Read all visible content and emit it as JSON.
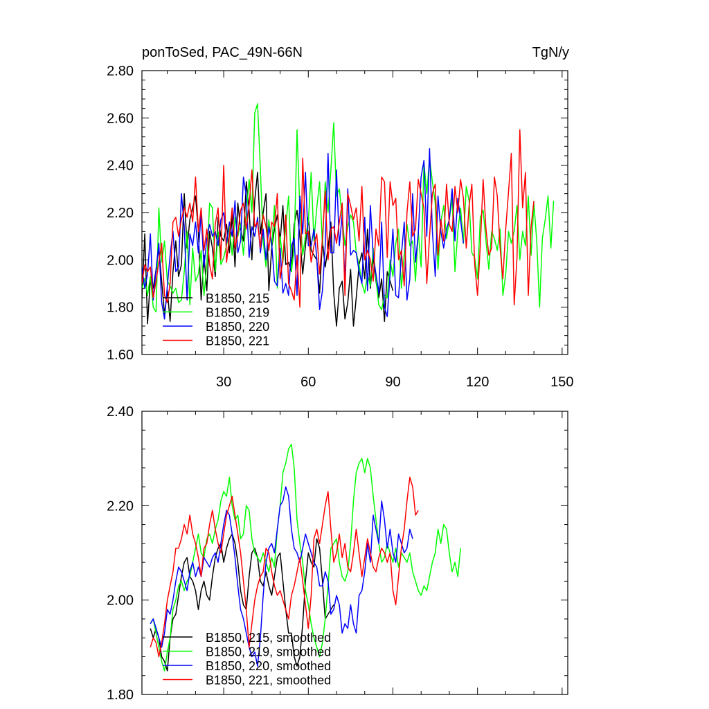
{
  "chart_data": [
    {
      "type": "line",
      "title_left": "ponToSed, PAC_49N-66N",
      "title_right": "TgN/y",
      "xlim": [
        1,
        152
      ],
      "ylim": [
        1.6,
        2.8
      ],
      "yticks": [
        1.6,
        1.8,
        2.0,
        2.2,
        2.4,
        2.6,
        2.8
      ],
      "ytick_labels": [
        "1.60",
        "1.80",
        "2.00",
        "2.20",
        "2.40",
        "2.60",
        "2.80"
      ],
      "xticks": [
        30,
        60,
        90,
        120,
        150
      ],
      "xtick_labels": [
        "30",
        "60",
        "90",
        "120",
        "150"
      ],
      "legend_position": "bottom-left",
      "series": [
        {
          "name": "B1850, 215",
          "color": "#000000",
          "x_start": 1,
          "values": [
            1.84,
            2.11,
            1.73,
            1.92,
            1.88,
            1.96,
            2.05,
            1.91,
            1.77,
            1.87,
            1.74,
            1.95,
            2.08,
            1.93,
            1.98,
            2.28,
            2.05,
            2.17,
            2.22,
            2.27,
            2.12,
            1.83,
            2.02,
            1.87,
            2.12,
            2.05,
            1.93,
            2.18,
            2.1,
            2.08,
            2.15,
            2.03,
            2.19,
            1.97,
            2.24,
            2.13,
            2.08,
            2.33,
            2.21,
            2.0,
            2.25,
            2.37,
            2.11,
            2.2,
            2.28,
            1.87,
            2.05,
            2.13,
            2.19,
            2.08,
            2.23,
            1.98,
            1.99,
            1.95,
            2.15,
            2.21,
            2.1,
            1.94,
            2.06,
            2.18,
            2.04,
            2.02,
            2.0,
            1.86,
            2.08,
            1.97,
            2.05,
            2.16,
            1.86,
            1.72,
            1.88,
            1.91,
            1.75,
            1.82,
            1.96,
            1.72,
            1.84,
            1.98,
            2.03,
            1.92,
            2.13,
            1.88,
            2.01,
            1.91,
            1.84,
            1.92,
            1.74,
            1.95,
            1.91,
            1.87
          ]
        },
        {
          "name": "B1850, 219",
          "color": "#00ff00",
          "x_start": 1,
          "values": [
            1.88,
            1.92,
            1.85,
            1.93,
            1.8,
            1.78,
            2.22,
            1.99,
            2.08,
            1.91,
            1.89,
            1.86,
            1.88,
            1.82,
            1.83,
            1.95,
            2.12,
            1.81,
            2.05,
            1.91,
            1.94,
            2.04,
            1.85,
            1.98,
            2.24,
            2.22,
            1.95,
            2.12,
            1.98,
            2.01,
            2.06,
            2.14,
            2.02,
            2.18,
            2.1,
            2.15,
            2.02,
            2.19,
            2.34,
            2.2,
            2.62,
            2.66,
            2.38,
            2.08,
            1.97,
            2.17,
            2.05,
            2.23,
            1.88,
            2.1,
            1.99,
            2.14,
            2.27,
            1.95,
            2.05,
            2.55,
            2.21,
            2.02,
            2.1,
            2.16,
            2.37,
            2.08,
            2.22,
            2.33,
            2.06,
            2.33,
            2.2,
            2.38,
            2.58,
            2.27,
            2.3,
            2.18,
            2.06,
            2.14,
            2.19,
            2.16,
            2.03,
            1.98,
            1.9,
            1.86,
            1.94,
            1.89,
            2.05,
            1.92,
            1.81,
            1.79,
            1.85,
            1.84,
            2.0,
            1.93,
            2.07,
            2.13,
            1.88,
            2.02,
            2.15,
            2.06,
            2.08,
            1.91,
            2.12,
            1.97,
            2.41,
            2.28,
            2.43,
            2.33,
            2.24,
            1.96,
            2.16,
            2.23,
            2.09,
            2.17,
            2.26,
            1.95,
            2.12,
            2.22,
            2.07,
            2.31,
            2.25,
            2.03,
            2.01,
            1.92,
            2.18,
            2.21,
            2.08,
            1.96,
            2.12,
            2.09,
            2.04,
            2.13,
            1.85,
            1.94,
            2.12,
            2.07,
            2.12,
            2.23,
            2.0,
            2.12,
            2.06,
            2.27,
            2.02,
            2.24,
            2.08,
            1.8,
            2.09,
            2.17,
            2.27,
            2.05,
            2.25
          ]
        },
        {
          "name": "B1850, 220",
          "color": "#0000ff",
          "x_start": 1,
          "values": [
            1.97,
            1.88,
            1.94,
            2.11,
            1.83,
            1.96,
            2.07,
            1.82,
            1.75,
            1.89,
            2.02,
            2.12,
            1.95,
            1.97,
            2.28,
            2.14,
            1.83,
            2.11,
            2.06,
            2.16,
            2.03,
            2.2,
            1.97,
            2.09,
            2.15,
            2.1,
            2.12,
            2.06,
            2.17,
            2.2,
            2.07,
            2.16,
            2.1,
            2.25,
            2.03,
            2.08,
            2.35,
            2.27,
            2.01,
            2.14,
            2.1,
            2.18,
            2.03,
            2.13,
            2.0,
            2.14,
            2.07,
            1.91,
            1.89,
            2.05,
            1.86,
            1.9,
            1.85,
            2.06,
            2.09,
            1.85,
            2.27,
            2.11,
            2.37,
            2.06,
            2.06,
            2.13,
            2.01,
            1.79,
            1.87,
            2.06,
            2.45,
            2.03,
            2.03,
            2.38,
            2.06,
            2.19,
            1.91,
            2.3,
            2.02,
            2.04,
            2.03,
            1.95,
            1.9,
            2.18,
            1.87,
            2.23,
            2.02,
            1.94,
            1.86,
            2.16,
            1.8,
            1.76,
            1.94,
            2.13,
            1.85,
            1.84,
            2.02,
            2.16,
            1.83,
            1.92,
            2.28,
            1.99,
            2.11,
            2.35,
            2.42,
            2.1,
            2.47,
            2.12,
            1.93,
            2.27,
            2.12,
            2.05,
            2.13,
            2.17,
            2.3,
            2.08,
            2.26,
            2.17,
            2.07
          ]
        },
        {
          "name": "B1850, 221",
          "color": "#ff0000",
          "x_start": 1,
          "values": [
            1.9,
            1.98,
            1.95,
            1.97,
            1.84,
            1.91,
            1.99,
            2.07,
            1.85,
            1.82,
            1.9,
            2.16,
            2.18,
            2.1,
            2.17,
            2.22,
            2.18,
            2.24,
            2.16,
            2.35,
            2.12,
            2.22,
            2.04,
            2.13,
            1.98,
            1.92,
            2.15,
            2.22,
            2.0,
            2.4,
            1.99,
            2.1,
            2.22,
            2.05,
            2.11,
            2.21,
            2.24,
            2.13,
            2.23,
            2.38,
            2.14,
            2.16,
            2.05,
            2.19,
            2.14,
            2.04,
            2.16,
            2.14,
            2.28,
            1.92,
            2.0,
            2.19,
            1.9,
            1.87,
            1.83,
            2.02,
            1.8,
            2.43,
            2.11,
            2.12,
            1.99,
            2.06,
            2.11,
            1.94,
            2.09,
            2.29,
            2.0,
            2.13,
            2.14,
            2.07,
            2.16,
            2.24,
            1.85,
            2.28,
            2.23,
            2.17,
            2.22,
            2.08,
            2.31,
            2.0,
            2.04,
            2.0,
            1.91,
            2.13,
            2.06,
            2.35,
            2.33,
            2.01,
            2.33,
            2.23,
            2.26,
            2.0,
            2.04,
            1.89,
            2.2,
            2.33,
            2.1,
            2.13,
            2.34,
            2.28,
            2.22,
            1.9,
            2.1,
            2.28,
            2.32,
            2.02,
            2.17,
            2.08,
            2.32,
            2.15,
            2.12,
            2.31,
            2.2,
            2.34,
            2.26,
            2.05,
            2.23,
            2.32,
            1.98,
            1.85,
            2.06,
            2.34,
            2.13,
            2.02,
            2.05,
            2.35,
            2.27,
            2.05,
            1.92,
            2.13,
            2.29,
            2.45,
            1.81,
            2.01,
            2.55,
            2.22,
            2.37,
            1.85,
            2.14,
            2.25
          ]
        }
      ]
    },
    {
      "type": "line",
      "xlim": [
        1,
        152
      ],
      "ylim": [
        1.8,
        2.4
      ],
      "yticks": [
        1.8,
        2.0,
        2.2,
        2.4
      ],
      "ytick_labels": [
        "1.80",
        "2.00",
        "2.20",
        "2.40"
      ],
      "xticks": [
        30,
        60,
        90,
        120,
        150
      ],
      "legend_position": "bottom-left",
      "series": [
        {
          "name": "B1850, 215, smoothed",
          "color": "#000000",
          "x_start": 4,
          "values": [
            1.94,
            1.92,
            1.94,
            1.92,
            1.88,
            1.87,
            1.85,
            1.92,
            1.96,
            1.97,
            2.01,
            2.05,
            2.08,
            2.09,
            2.05,
            2.04,
            2.02,
            1.98,
            2.02,
            2.04,
            2.01,
            2.0,
            2.05,
            2.09,
            2.11,
            2.12,
            2.08,
            2.11,
            2.13,
            2.14,
            2.12,
            2.08,
            2.02,
            1.99,
            1.98,
            2.05,
            2.1,
            2.11,
            2.09,
            2.04,
            2.03,
            2.06,
            2.03,
            2.01,
            2.05,
            2.09,
            2.1,
            2.04,
            1.98,
            1.93,
            1.93,
            1.88,
            1.86,
            1.88,
            1.95,
            2.04,
            2.1,
            2.08,
            2.07,
            2.13,
            2.11,
            2.04,
            1.96,
            1.97,
            1.98,
            1.99
          ]
        },
        {
          "name": "B1850, 219, smoothed",
          "color": "#00ff00",
          "x_start": 4,
          "values": [
            1.95,
            1.96,
            1.93,
            1.9,
            1.87,
            1.85,
            1.89,
            1.92,
            1.98,
            2.0,
            2.03,
            2.04,
            2.02,
            2.04,
            2.05,
            2.08,
            2.11,
            2.14,
            2.1,
            2.09,
            2.13,
            2.14,
            2.12,
            2.15,
            2.17,
            2.21,
            2.23,
            2.22,
            2.26,
            2.2,
            2.17,
            2.18,
            2.13,
            2.14,
            2.2,
            2.19,
            2.13,
            2.1,
            2.09,
            2.08,
            2.1,
            2.08,
            2.06,
            2.09,
            2.07,
            2.15,
            2.2,
            2.27,
            2.29,
            2.32,
            2.33,
            2.28,
            2.17,
            2.12,
            2.08,
            2.02,
            1.99,
            1.95,
            1.92,
            1.9,
            1.88,
            1.91,
            1.96,
            2.03,
            2.11,
            2.12,
            2.13,
            2.08,
            2.05,
            2.04,
            2.06,
            2.12,
            2.21,
            2.27,
            2.29,
            2.3,
            2.27,
            2.3,
            2.28,
            2.22,
            2.17,
            2.12,
            2.08,
            2.09,
            2.12,
            2.1,
            2.08,
            2.11,
            2.07,
            2.1,
            2.09,
            2.08,
            2.1,
            2.06,
            2.04,
            2.02,
            2.01,
            2.03,
            2.02,
            2.05,
            2.08,
            2.1,
            2.15,
            2.12,
            2.16,
            2.15,
            2.1,
            2.06,
            2.08,
            2.05,
            2.11
          ]
        },
        {
          "name": "B1850, 220, smoothed",
          "color": "#0000ff",
          "x_start": 4,
          "values": [
            1.95,
            1.96,
            1.94,
            1.92,
            1.9,
            1.93,
            1.98,
            1.97,
            2.0,
            2.04,
            2.07,
            2.06,
            2.04,
            2.02,
            2.06,
            2.08,
            2.05,
            2.07,
            2.05,
            2.09,
            2.08,
            2.07,
            2.09,
            2.1,
            2.08,
            2.12,
            2.16,
            2.19,
            2.18,
            2.14,
            2.09,
            2.03,
            1.98,
            1.96,
            1.93,
            1.9,
            1.88,
            1.89,
            1.86,
            1.92,
            2.01,
            2.08,
            2.11,
            2.12,
            2.1,
            2.15,
            2.2,
            2.21,
            2.24,
            2.22,
            2.15,
            2.11,
            2.1,
            2.08,
            2.11,
            2.14,
            2.12,
            2.1,
            2.08,
            2.07,
            2.03,
            2.03,
            2.06,
            2.04,
            1.97,
            1.98,
            2.01,
            1.99,
            1.93,
            1.95,
            1.94,
            1.99,
            1.95,
            1.93,
            2.01,
            2.02,
            2.06,
            2.12,
            2.08,
            2.18,
            2.15,
            2.12,
            2.21,
            2.17,
            2.11,
            2.15,
            2.1,
            2.08,
            2.14,
            2.12,
            2.1,
            2.11,
            2.15,
            2.13
          ]
        },
        {
          "name": "B1850, 221, smoothed",
          "color": "#ff0000",
          "x_start": 4,
          "values": [
            1.9,
            1.92,
            1.91,
            1.88,
            1.91,
            1.95,
            2.0,
            2.03,
            2.06,
            2.11,
            2.11,
            2.13,
            2.16,
            2.14,
            2.18,
            2.14,
            2.12,
            2.09,
            2.05,
            2.11,
            2.12,
            2.16,
            2.19,
            2.15,
            2.12,
            2.1,
            2.14,
            2.18,
            2.2,
            2.22,
            2.18,
            2.14,
            2.1,
            2.04,
            1.98,
            1.9,
            1.95,
            2.0,
            2.03,
            2.05,
            2.06,
            2.11,
            2.1,
            2.06,
            2.03,
            2.01,
            2.02,
            2.0,
            1.98,
            1.96,
            2.01,
            2.03,
            2.06,
            2.09,
            2.04,
            1.99,
            1.94,
            2.01,
            2.13,
            2.15,
            2.12,
            2.16,
            2.2,
            2.23,
            2.15,
            2.08,
            2.1,
            2.14,
            2.09,
            2.12,
            2.07,
            2.06,
            2.1,
            2.15,
            2.1,
            2.05,
            2.09,
            2.13,
            2.1,
            2.07,
            2.06,
            2.09,
            2.11,
            2.1,
            2.08,
            2.1,
            2.02,
            1.99,
            2.05,
            2.11,
            2.15,
            2.21,
            2.26,
            2.24,
            2.18,
            2.19
          ]
        }
      ]
    }
  ]
}
